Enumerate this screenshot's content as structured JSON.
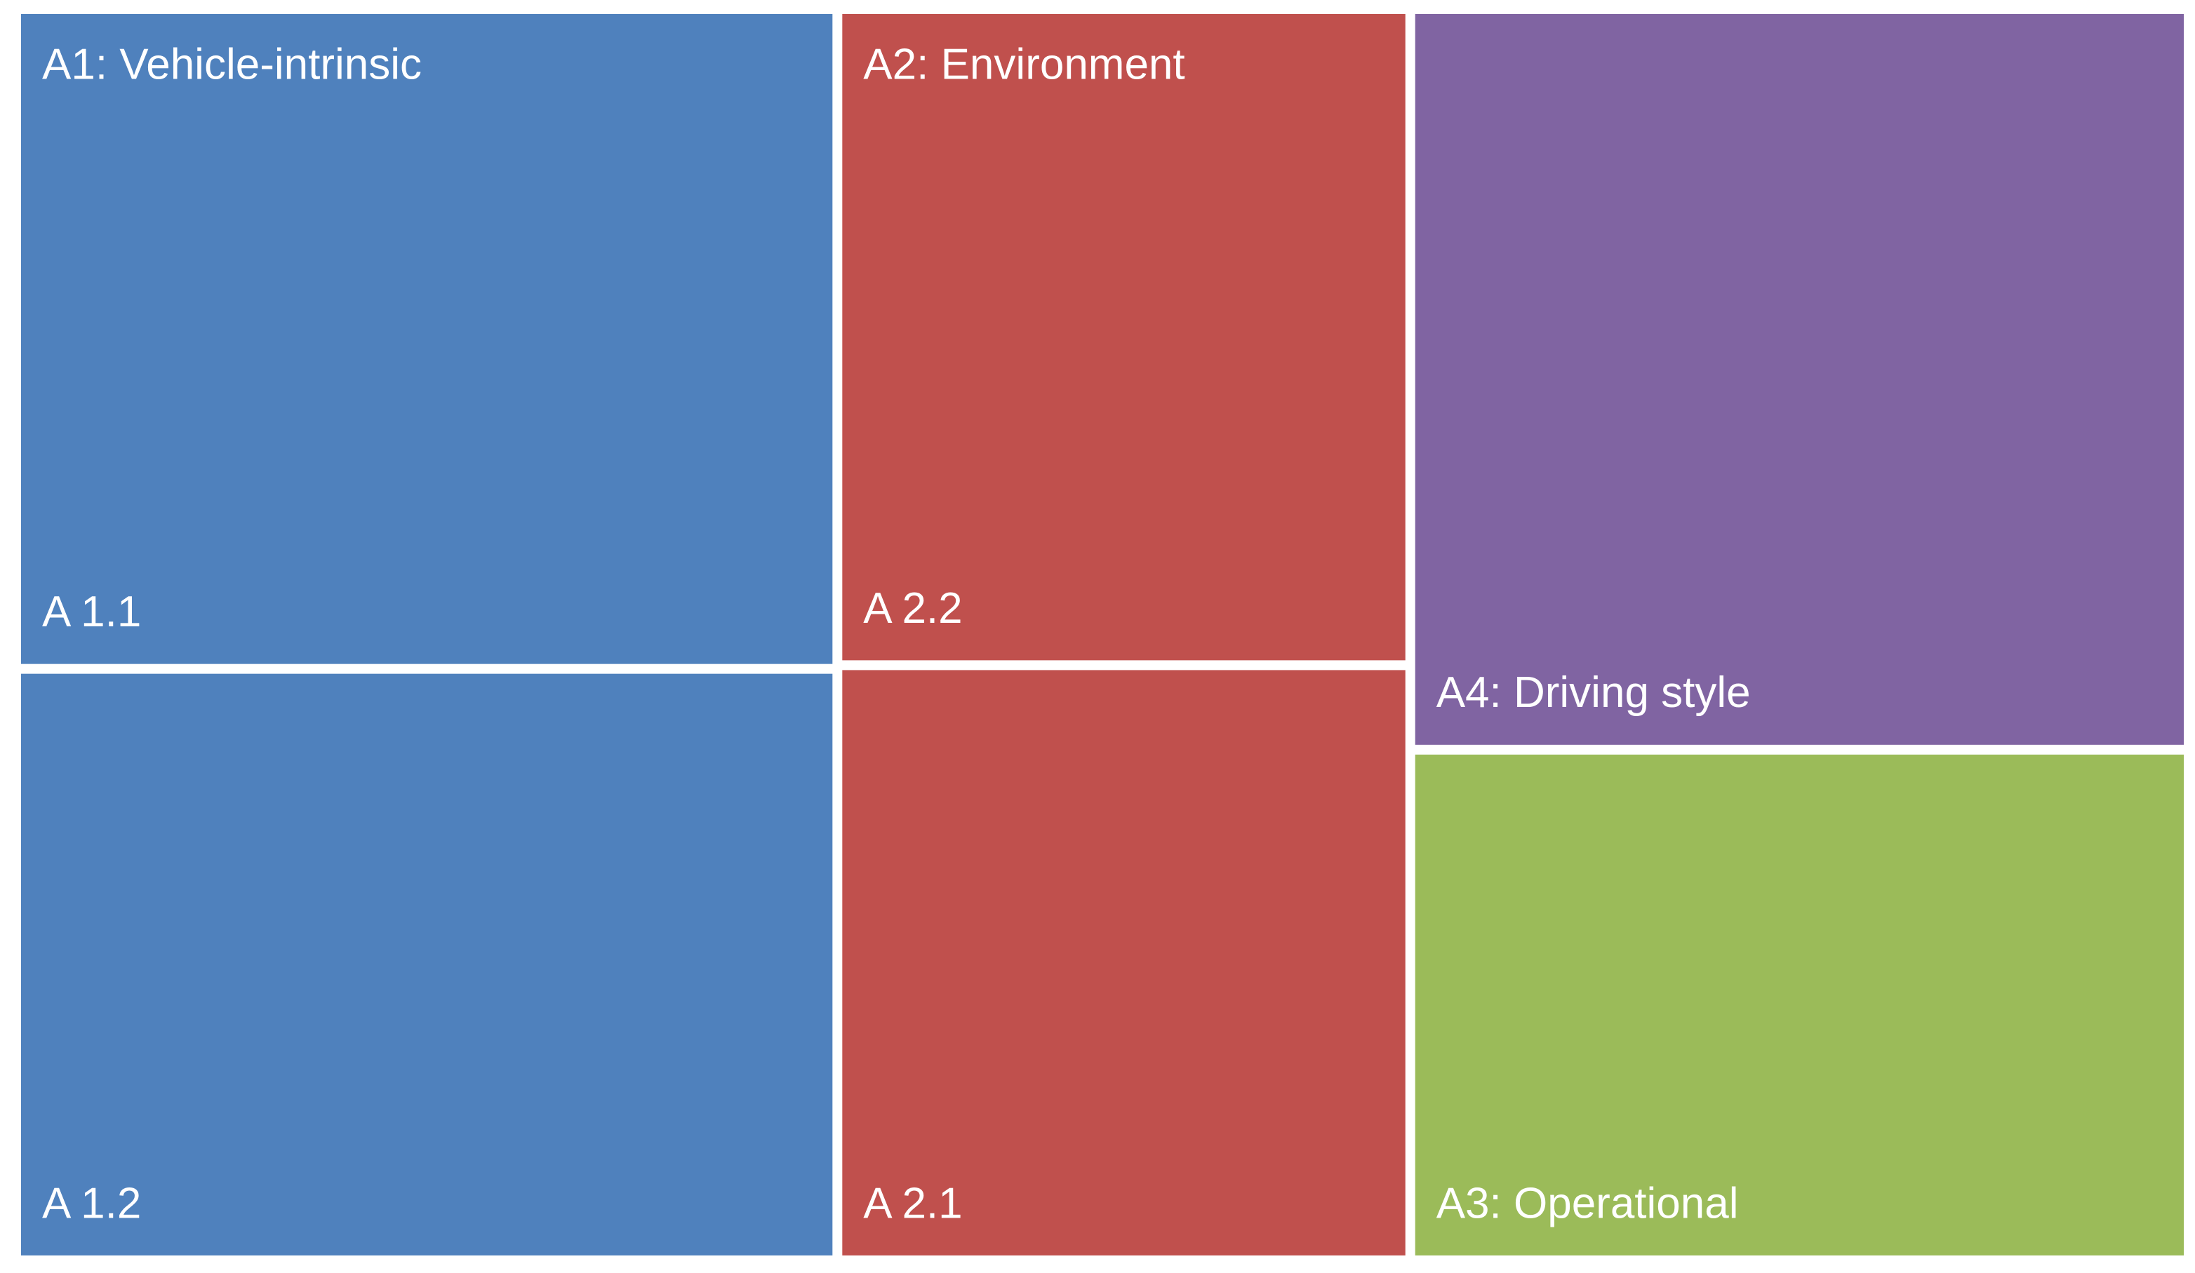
{
  "chart_data": {
    "type": "treemap",
    "groups": [
      {
        "name": "A1: Vehicle-intrinsic",
        "color": "#4f81bd",
        "children": [
          {
            "name": "A 1.1",
            "value": 20.0
          },
          {
            "name": "A 1.2",
            "value": 17.9
          }
        ]
      },
      {
        "name": "A2: Environment",
        "color": "#c0504d",
        "children": [
          {
            "name": "A 2.2",
            "value": 13.8
          },
          {
            "name": "A 2.1",
            "value": 12.5
          }
        ]
      },
      {
        "name": "A4: Driving style",
        "color": "#8064a2",
        "value": 21.3
      },
      {
        "name": "A3: Operational",
        "color": "#9bbb59",
        "value": 14.6
      }
    ]
  }
}
